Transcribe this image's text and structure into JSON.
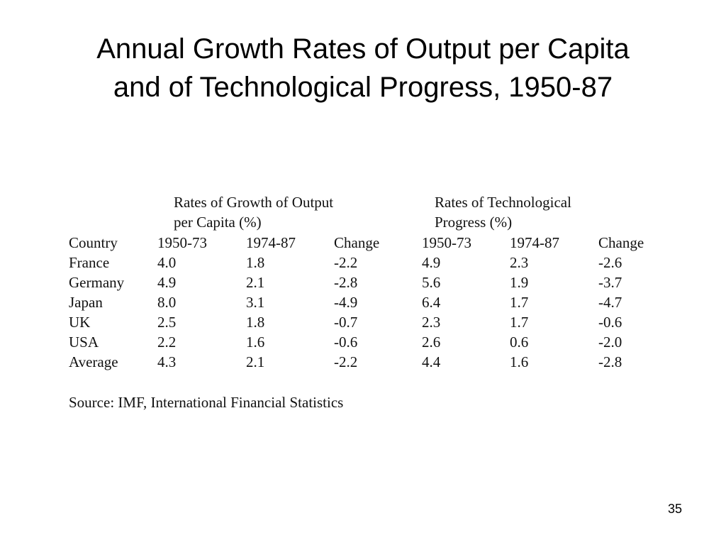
{
  "slide": {
    "title_line1": "Annual Growth Rates of Output per Capita",
    "title_line2": "and of Technological Progress, 1950-87",
    "page_number": "35"
  },
  "table": {
    "group_headers": {
      "output_line1": "Rates of Growth of Output",
      "output_line2": "per Capita (%)",
      "tech_line1": "Rates of Technological",
      "tech_line2": "Progress (%)"
    },
    "columns": [
      "Country",
      "1950-73",
      "1974-87",
      "Change",
      "1950-73",
      "1974-87",
      "Change"
    ],
    "rows": [
      [
        "France",
        "4.0",
        "1.8",
        "-2.2",
        "4.9",
        "2.3",
        "-2.6"
      ],
      [
        "Germany",
        "4.9",
        "2.1",
        "-2.8",
        "5.6",
        "1.9",
        "-3.7"
      ],
      [
        "Japan",
        "8.0",
        "3.1",
        "-4.9",
        "6.4",
        "1.7",
        "-4.7"
      ],
      [
        "UK",
        "2.5",
        "1.8",
        "-0.7",
        "2.3",
        "1.7",
        "-0.6"
      ],
      [
        "USA",
        "2.2",
        "1.6",
        "-0.6",
        "2.6",
        "0.6",
        "-2.0"
      ],
      [
        "Average",
        "4.3",
        "2.1",
        "-2.2",
        "4.4",
        "1.6",
        "-2.8"
      ]
    ],
    "source": "Source: IMF, International Financial Statistics"
  }
}
